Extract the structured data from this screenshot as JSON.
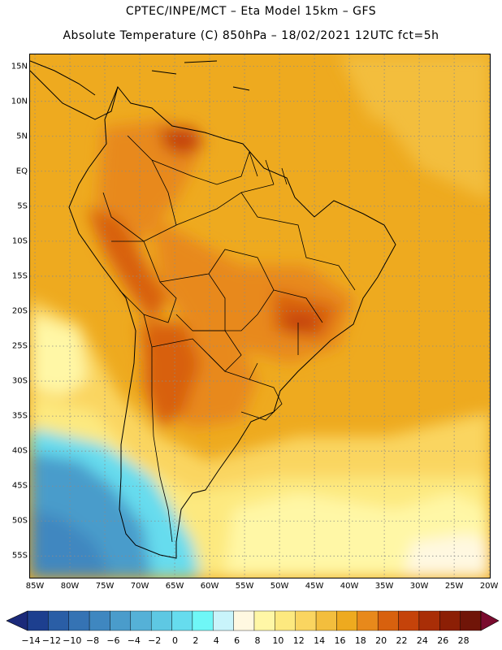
{
  "header": {
    "line1": "CPTEC/INPE/MCT –  Eta Model 15km – GFS",
    "line2": "Absolute Temperature (C) 850hPa – 18/02/2021 12UTC fct=5h"
  },
  "map": {
    "lat_labels": [
      "15N",
      "10N",
      "5N",
      "EQ",
      "5S",
      "10S",
      "15S",
      "20S",
      "25S",
      "30S",
      "35S",
      "40S",
      "45S",
      "50S",
      "55S"
    ],
    "lon_labels": [
      "85W",
      "80W",
      "75W",
      "70W",
      "65W",
      "60W",
      "55W",
      "50W",
      "45W",
      "40W",
      "35W",
      "30W",
      "25W",
      "20W"
    ],
    "extent": {
      "lon_min": -85.7,
      "lon_max": -19.9,
      "lat_min": -58.1,
      "lat_max": 16.7
    },
    "grid": {
      "lon_step": 5,
      "lat_step": 5,
      "style": "dotted"
    }
  },
  "colorbar": {
    "ticks": [
      "-14",
      "-12",
      "-10",
      "-8",
      "-6",
      "-4",
      "-2",
      "0",
      "2",
      "4",
      "6",
      "8",
      "10",
      "12",
      "14",
      "16",
      "18",
      "20",
      "22",
      "24",
      "26",
      "28"
    ],
    "colors": [
      "#1d3f8f",
      "#2a5ea6",
      "#3573b4",
      "#3f87c0",
      "#4a9ccb",
      "#55b1d7",
      "#5ec8e3",
      "#66dcee",
      "#6ff7f7",
      "#c9f4fb",
      "#fff8e1",
      "#fff7a6",
      "#fde97f",
      "#fad560",
      "#f3be3d",
      "#eeaa1f",
      "#e8891b",
      "#d8610e",
      "#c5430a",
      "#a92e07",
      "#8c1f05",
      "#701508"
    ],
    "under_color": "#1b2a7a",
    "over_color": "#7a0b2e"
  }
}
